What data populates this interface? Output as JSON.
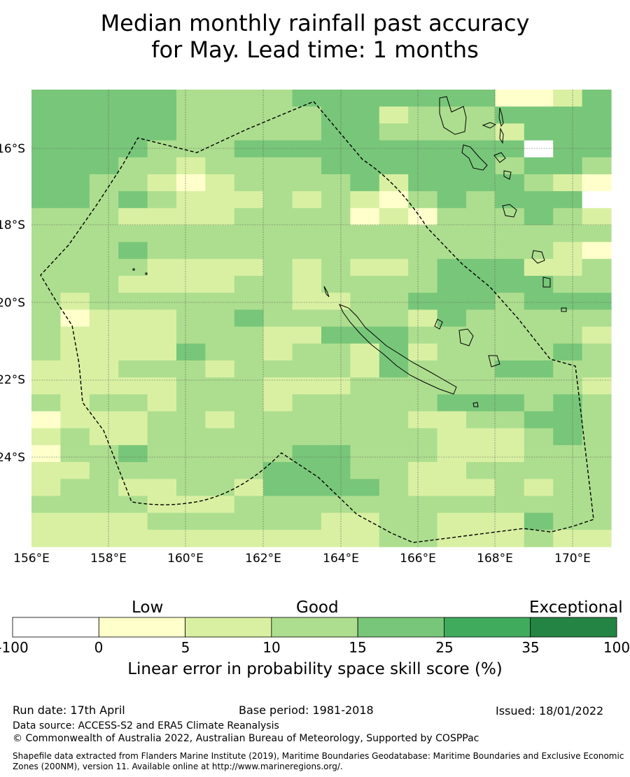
{
  "title": {
    "line1": "Median monthly rainfall past accuracy",
    "line2": "for May. Lead time: 1 months"
  },
  "map": {
    "lon_labels": [
      "156°E",
      "158°E",
      "160°E",
      "162°E",
      "164°E",
      "166°E",
      "168°E",
      "170°E"
    ],
    "lat_labels": [
      "16°S",
      "18°S",
      "20°S",
      "22°S",
      "24°S"
    ],
    "skill_grid": [
      "44444333344444441124",
      "44444333334423334444",
      "44444333334433332444",
      "44443334444444444044",
      "44433233334444443443",
      "44332123333424444321",
      "44343222323213434440",
      "33322223333121333432",
      "33333333333333333333",
      "33343333333333333321",
      "33332222323223444223",
      "33322223323333444433",
      "32333333322334443444",
      "31222334333332433333",
      "32222333224443333332",
      "32222433233242333343",
      "22233323333243334433",
      "22222333222333333332",
      "32332333233333444343",
      "12223323333332233443",
      "23223333333333222343",
      "13343333344333222333",
      "22333333444332233333",
      "23322332444432223233",
      "33332223333333333333",
      "22223333332233222433",
      "22222222222233222322"
    ],
    "skill_colors": {
      "0": "#ffffff",
      "1": "#ffffcc",
      "2": "#d9f0a3",
      "3": "#addd8e",
      "4": "#78c679",
      "5": "#41ab5d",
      "6": "#238443"
    }
  },
  "colorbar": {
    "headings": {
      "low": "Low",
      "good": "Good",
      "exceptional": "Exceptional"
    },
    "ticks": [
      "-100",
      "0",
      "5",
      "10",
      "15",
      "25",
      "35",
      "100"
    ],
    "bins": [
      {
        "min": -100,
        "max": 0,
        "color": "#ffffff"
      },
      {
        "min": 0,
        "max": 5,
        "color": "#ffffcc"
      },
      {
        "min": 5,
        "max": 10,
        "color": "#d9f0a3"
      },
      {
        "min": 10,
        "max": 15,
        "color": "#addd8e"
      },
      {
        "min": 15,
        "max": 25,
        "color": "#78c679"
      },
      {
        "min": 25,
        "max": 35,
        "color": "#41ab5d"
      },
      {
        "min": 35,
        "max": 100,
        "color": "#238443"
      }
    ],
    "label": "Linear error in probability space skill score (%)"
  },
  "footer": {
    "run_date": "Run date: 17th April",
    "base_period": "Base period: 1981-2018",
    "issued": "Issued: 18/01/2022",
    "data_source": "Data source: ACCESS-S2 and ERA5 Climate Reanalysis",
    "copyright": "© Commonwealth of Australia 2022, Australian Bureau of Meteorology, Supported by COSPPac",
    "shapefile": "Shapefile data extracted from Flanders Marine Institute (2019), Maritime Boundaries Geodatabase: Maritime Boundaries and Exclusive Economic Zones (200NM), version 11. Available online at http://www.marineregions.org/."
  }
}
